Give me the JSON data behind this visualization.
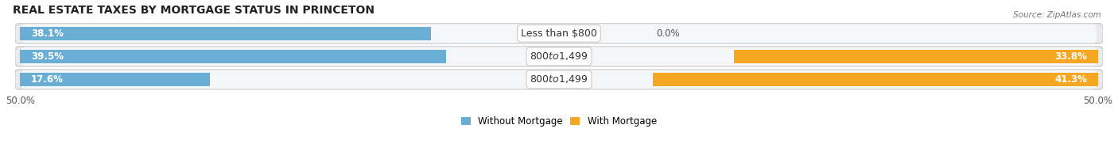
{
  "title": "REAL ESTATE TAXES BY MORTGAGE STATUS IN PRINCETON",
  "source": "Source: ZipAtlas.com",
  "rows": [
    {
      "label": "Less than $800",
      "without_mortgage": 38.1,
      "with_mortgage": 0.0
    },
    {
      "label": "$800 to $1,499",
      "without_mortgage": 39.5,
      "with_mortgage": 33.8
    },
    {
      "label": "$800 to $1,499",
      "without_mortgage": 17.6,
      "with_mortgage": 41.3
    }
  ],
  "x_max": 50.0,
  "x_tick_labels": [
    "50.0%",
    "50.0%"
  ],
  "color_without": "#6aaed6",
  "color_without_light": "#b8d4e8",
  "color_with": "#f5a623",
  "color_with_light": "#fbd49a",
  "bar_height": 0.58,
  "row_bg_color": "#e8eaed",
  "row_bg_inner": "#f5f6f7",
  "legend_label_without": "Without Mortgage",
  "legend_label_with": "With Mortgage",
  "title_fontsize": 10,
  "label_fontsize": 9,
  "value_fontsize": 8.5
}
